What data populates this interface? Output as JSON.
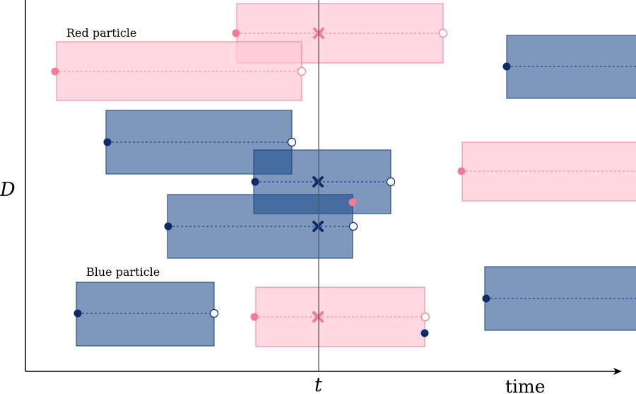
{
  "axes": {
    "x_label": "time",
    "y_label": "D",
    "t_label": "t"
  },
  "annotations": {
    "red_particle": "Red particle",
    "blue_particle": "Blue particle"
  },
  "colors": {
    "red_fill": "#ffc8d5",
    "red_stroke": "#f27f9d",
    "red_dot": "#f47b95",
    "blue_fill": "#1f4e8c",
    "blue_stroke": "#1a3f73",
    "blue_dot": "#0b2c6b",
    "axis": "#000000",
    "time_line": "#555555"
  }
}
